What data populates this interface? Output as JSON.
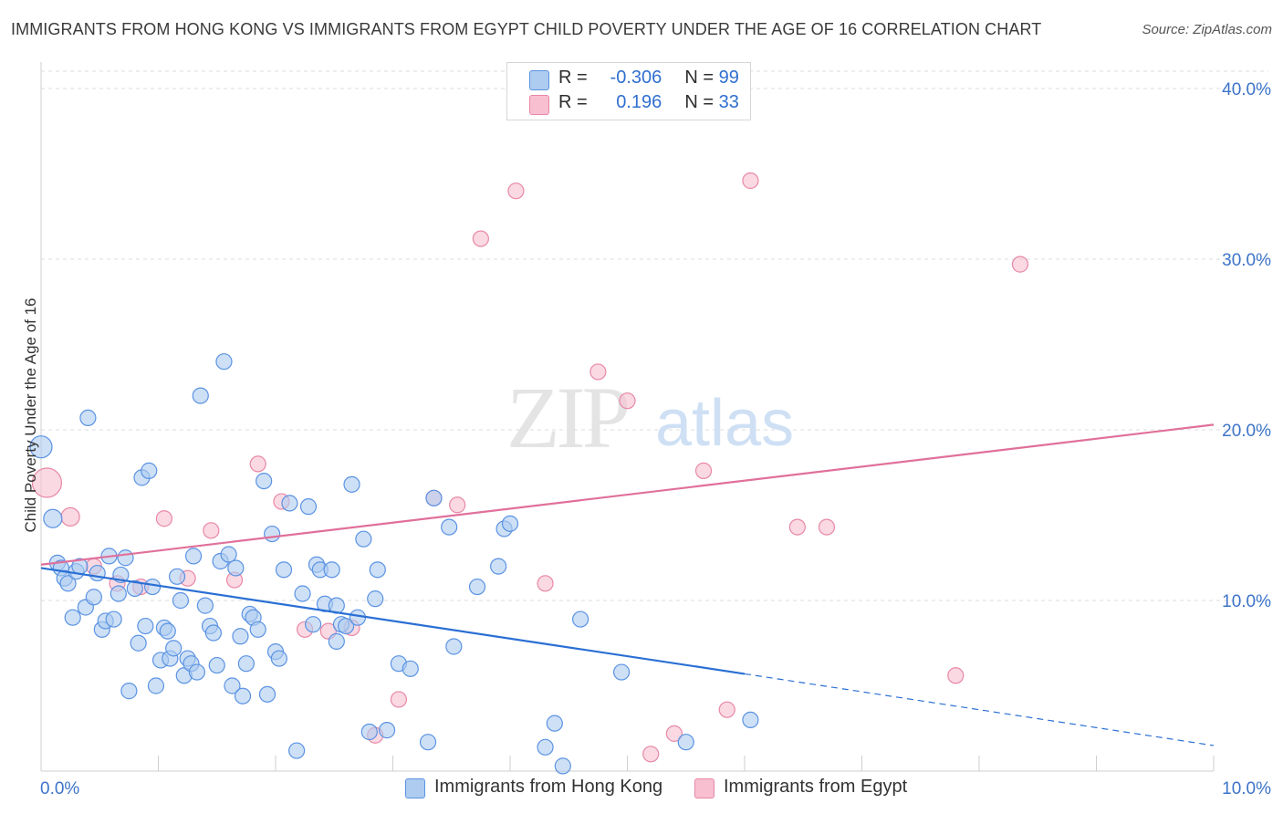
{
  "title": "IMMIGRANTS FROM HONG KONG VS IMMIGRANTS FROM EGYPT CHILD POVERTY UNDER THE AGE OF 16 CORRELATION CHART",
  "source": "Source: ZipAtlas.com",
  "watermark": {
    "zip": "ZIP",
    "atlas": "atlas"
  },
  "legend_top": [
    {
      "r_label": "R =",
      "r_value": "-0.306",
      "n_label": "N =",
      "n_value": "99",
      "color": "#aecbf0"
    },
    {
      "r_label": "R =",
      "r_value": "0.196",
      "n_label": "N =",
      "n_value": "33",
      "color": "#f7bfd0"
    }
  ],
  "legend_bottom": [
    {
      "label": "Immigrants from Hong Kong",
      "color": "#aecbf0"
    },
    {
      "label": "Immigrants from Egypt",
      "color": "#f7bfd0"
    }
  ],
  "chart_data": {
    "type": "scatter",
    "title": "IMMIGRANTS FROM HONG KONG VS IMMIGRANTS FROM EGYPT CHILD POVERTY UNDER THE AGE OF 16 CORRELATION CHART",
    "xlabel": "",
    "ylabel": "Child Poverty Under the Age of 16",
    "xlim": [
      0,
      10
    ],
    "ylim": [
      0,
      40
    ],
    "x_tick_labels": [
      "0.0%",
      "10.0%"
    ],
    "y_ticks": [
      10,
      20,
      30,
      40
    ],
    "y_tick_labels": [
      "10.0%",
      "20.0%",
      "30.0%",
      "40.0%"
    ],
    "grid": true,
    "legend_position": "top-center",
    "series": [
      {
        "name": "Immigrants from Hong Kong",
        "color": "#5b93e3",
        "fill": "#aecbf0",
        "trend": {
          "x0": 0,
          "y0": 11.9,
          "x1": 6.0,
          "y1": 5.7,
          "dash_to_x": 10,
          "dash_to_y": 1.5,
          "color": "#2a6fd4"
        },
        "points": [
          [
            0.0,
            19.0
          ],
          [
            0.1,
            14.8
          ],
          [
            0.14,
            12.2
          ],
          [
            0.17,
            11.9
          ],
          [
            0.2,
            11.3
          ],
          [
            0.23,
            11.0
          ],
          [
            0.27,
            9.0
          ],
          [
            0.3,
            11.7
          ],
          [
            0.33,
            12.0
          ],
          [
            0.38,
            9.6
          ],
          [
            0.4,
            20.7
          ],
          [
            0.45,
            10.2
          ],
          [
            0.48,
            11.6
          ],
          [
            0.52,
            8.3
          ],
          [
            0.55,
            8.8
          ],
          [
            0.58,
            12.6
          ],
          [
            0.62,
            8.9
          ],
          [
            0.66,
            10.4
          ],
          [
            0.68,
            11.5
          ],
          [
            0.72,
            12.5
          ],
          [
            0.75,
            4.7
          ],
          [
            0.8,
            10.7
          ],
          [
            0.83,
            7.5
          ],
          [
            0.86,
            17.2
          ],
          [
            0.89,
            8.5
          ],
          [
            0.92,
            17.6
          ],
          [
            0.95,
            10.8
          ],
          [
            0.98,
            5.0
          ],
          [
            1.02,
            6.5
          ],
          [
            1.05,
            8.4
          ],
          [
            1.08,
            8.2
          ],
          [
            1.1,
            6.6
          ],
          [
            1.13,
            7.2
          ],
          [
            1.16,
            11.4
          ],
          [
            1.19,
            10.0
          ],
          [
            1.22,
            5.6
          ],
          [
            1.25,
            6.6
          ],
          [
            1.28,
            6.3
          ],
          [
            1.3,
            12.6
          ],
          [
            1.33,
            5.8
          ],
          [
            1.36,
            22.0
          ],
          [
            1.4,
            9.7
          ],
          [
            1.44,
            8.5
          ],
          [
            1.47,
            8.1
          ],
          [
            1.5,
            6.2
          ],
          [
            1.53,
            12.3
          ],
          [
            1.56,
            24.0
          ],
          [
            1.6,
            12.7
          ],
          [
            1.63,
            5.0
          ],
          [
            1.66,
            11.9
          ],
          [
            1.7,
            7.9
          ],
          [
            1.72,
            4.4
          ],
          [
            1.75,
            6.3
          ],
          [
            1.78,
            9.2
          ],
          [
            1.81,
            9.0
          ],
          [
            1.85,
            8.3
          ],
          [
            1.9,
            17.0
          ],
          [
            1.93,
            4.5
          ],
          [
            1.97,
            13.9
          ],
          [
            2.0,
            7.0
          ],
          [
            2.03,
            6.6
          ],
          [
            2.07,
            11.8
          ],
          [
            2.12,
            15.7
          ],
          [
            2.18,
            1.2
          ],
          [
            2.23,
            10.4
          ],
          [
            2.28,
            15.5
          ],
          [
            2.32,
            8.6
          ],
          [
            2.35,
            12.1
          ],
          [
            2.38,
            11.8
          ],
          [
            2.42,
            9.8
          ],
          [
            2.48,
            11.8
          ],
          [
            2.52,
            7.6
          ],
          [
            2.52,
            9.7
          ],
          [
            2.56,
            8.6
          ],
          [
            2.6,
            8.5
          ],
          [
            2.65,
            16.8
          ],
          [
            2.7,
            9.0
          ],
          [
            2.75,
            13.6
          ],
          [
            2.8,
            2.3
          ],
          [
            2.85,
            10.1
          ],
          [
            2.87,
            11.8
          ],
          [
            2.95,
            2.4
          ],
          [
            3.05,
            6.3
          ],
          [
            3.15,
            6.0
          ],
          [
            3.3,
            1.7
          ],
          [
            3.35,
            16.0
          ],
          [
            3.48,
            14.3
          ],
          [
            3.52,
            7.3
          ],
          [
            3.72,
            10.8
          ],
          [
            3.9,
            12.0
          ],
          [
            3.95,
            14.2
          ],
          [
            4.0,
            14.5
          ],
          [
            4.3,
            1.4
          ],
          [
            4.38,
            2.8
          ],
          [
            4.45,
            0.3
          ],
          [
            4.6,
            8.9
          ],
          [
            4.95,
            5.8
          ],
          [
            5.5,
            1.7
          ],
          [
            6.05,
            3.0
          ]
        ]
      },
      {
        "name": "Immigrants from Egypt",
        "color": "#e888a6",
        "fill": "#f7bfd0",
        "trend": {
          "x0": 0,
          "y0": 12.1,
          "x1": 10,
          "y1": 20.3,
          "color": "#e0709a"
        },
        "points": [
          [
            0.05,
            16.9
          ],
          [
            0.25,
            14.9
          ],
          [
            0.45,
            12.0
          ],
          [
            0.65,
            11.0
          ],
          [
            0.85,
            10.8
          ],
          [
            1.05,
            14.8
          ],
          [
            1.25,
            11.3
          ],
          [
            1.45,
            14.1
          ],
          [
            1.65,
            11.2
          ],
          [
            1.85,
            18.0
          ],
          [
            2.05,
            15.8
          ],
          [
            2.25,
            8.3
          ],
          [
            2.45,
            8.2
          ],
          [
            2.65,
            8.4
          ],
          [
            2.85,
            2.1
          ],
          [
            3.05,
            4.2
          ],
          [
            3.35,
            16.0
          ],
          [
            3.55,
            15.6
          ],
          [
            3.75,
            31.2
          ],
          [
            4.05,
            34.0
          ],
          [
            4.3,
            11.0
          ],
          [
            4.5,
            39.0
          ],
          [
            4.75,
            23.4
          ],
          [
            5.0,
            21.7
          ],
          [
            5.2,
            1.0
          ],
          [
            5.4,
            2.2
          ],
          [
            5.65,
            17.6
          ],
          [
            5.85,
            3.6
          ],
          [
            6.05,
            34.6
          ],
          [
            6.45,
            14.3
          ],
          [
            6.7,
            14.3
          ],
          [
            7.8,
            5.6
          ],
          [
            8.35,
            29.7
          ]
        ]
      }
    ]
  }
}
